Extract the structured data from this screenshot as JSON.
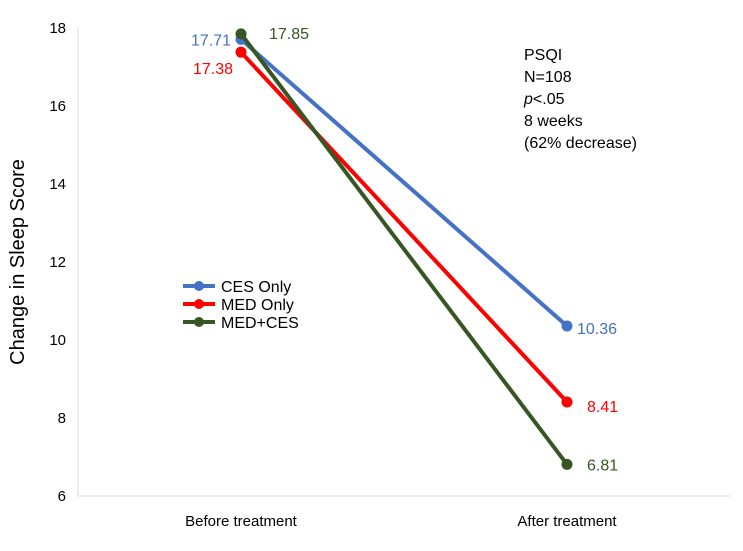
{
  "chart_data": {
    "type": "line",
    "title": "",
    "ylabel": "Change in Sleep Score",
    "xlabel": "",
    "categories": [
      "Before treatment",
      "After treatment"
    ],
    "ylim": [
      6,
      18
    ],
    "yticks": [
      6,
      8,
      10,
      12,
      14,
      16,
      18
    ],
    "grid": false,
    "legend_position": "middle-left",
    "series": [
      {
        "name": "CES Only",
        "color": "#4472c4",
        "values": [
          17.71,
          10.36
        ],
        "labels": [
          "17.71",
          "10.36"
        ]
      },
      {
        "name": "MED Only",
        "color": "#ff0000",
        "values": [
          17.38,
          8.41
        ],
        "labels": [
          "17.38",
          "8.41"
        ]
      },
      {
        "name": "MED+CES",
        "color": "#375623",
        "values": [
          17.85,
          6.81
        ],
        "labels": [
          "17.85",
          "6.81"
        ]
      }
    ],
    "annotation": {
      "line1": "PSQI",
      "line2": "N=108",
      "line3_italic": "p",
      "line3_rest": "<.05",
      "line4": "8 weeks",
      "line5": "(62% decrease)"
    }
  }
}
